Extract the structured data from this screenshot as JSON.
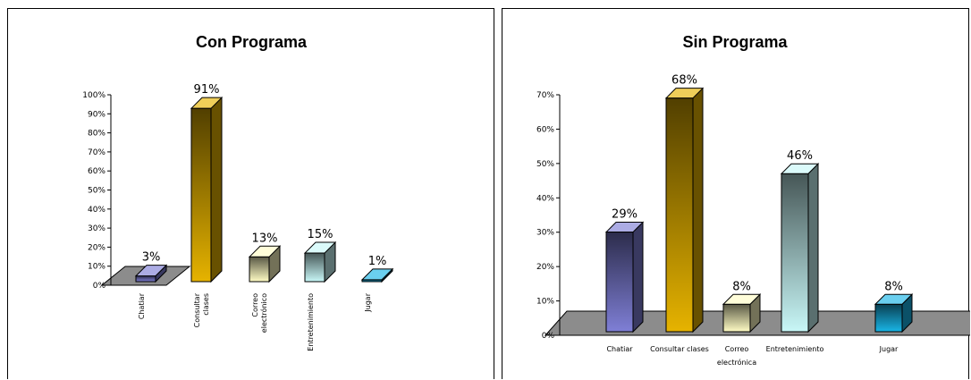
{
  "chart_data": [
    {
      "type": "bar",
      "title": "Con Programa",
      "categories": [
        "Chatiar",
        "Consultar clases",
        "Correo electrónico",
        "Entretenimiento",
        "Jugar"
      ],
      "values": [
        3,
        91,
        13,
        15,
        1
      ],
      "data_labels": [
        "3%",
        "91%",
        "13%",
        "15%",
        "1%"
      ],
      "ylim": [
        0,
        100
      ],
      "yticks": [
        "0%",
        "10%",
        "20%",
        "30%",
        "40%",
        "50%",
        "60%",
        "70%",
        "80%",
        "90%",
        "100%"
      ],
      "colors": [
        "#7f7fd6",
        "#e6b300",
        "#fffcc4",
        "#c8f7f7",
        "#19b5e6"
      ],
      "category_label_orientation": "vertical",
      "style": "3d"
    },
    {
      "type": "bar",
      "title": "Sin Programa",
      "categories": [
        "Chatiar",
        "Consultar clases",
        "Correo electrónico",
        "Entretenimiento",
        "Jugar"
      ],
      "values": [
        29,
        68,
        8,
        46,
        8
      ],
      "data_labels": [
        "29%",
        "68%",
        "8%",
        "46%",
        "8%"
      ],
      "ylim": [
        0,
        70
      ],
      "yticks": [
        "0%",
        "10%",
        "20%",
        "30%",
        "40%",
        "50%",
        "60%",
        "70%"
      ],
      "colors": [
        "#7f7fd6",
        "#e6b300",
        "#fffcc4",
        "#c8f7f7",
        "#19b5e6"
      ],
      "category_label_orientation": "horizontal",
      "style": "3d"
    }
  ]
}
